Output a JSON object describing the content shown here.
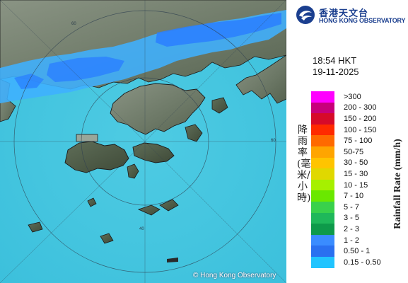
{
  "map": {
    "copyright": "© Hong Kong Observatory",
    "range_ring_labels": [
      "40",
      "60"
    ],
    "colors": {
      "sea": "#45c7e0",
      "land": "#6e7a6a",
      "rain_light": "#3fb0ff",
      "rain_moderate": "#2a7fff",
      "coast": "#1a1a1a"
    }
  },
  "header": {
    "logo_name_zh": "香港天文台",
    "logo_name_en": "HONG KONG OBSERVATORY",
    "time": "18:54 HKT",
    "date": "19-11-2025"
  },
  "legend": {
    "title_zh": "降雨率(毫米/小時)",
    "title_en": "Rainfall Rate (mm/h)",
    "items": [
      {
        "label": ">300",
        "color": "#ff00ff"
      },
      {
        "label": "200 - 300",
        "color": "#c8007a"
      },
      {
        "label": "150 - 200",
        "color": "#d60a2a"
      },
      {
        "label": "100 - 150",
        "color": "#ff2a00"
      },
      {
        "label": "75 - 100",
        "color": "#ff6a00"
      },
      {
        "label": "50-75",
        "color": "#ffa500"
      },
      {
        "label": "30 - 50",
        "color": "#ffc400"
      },
      {
        "label": "15 - 30",
        "color": "#e0d800"
      },
      {
        "label": "10 - 15",
        "color": "#a6f000"
      },
      {
        "label": "7 - 10",
        "color": "#6ae800"
      },
      {
        "label": "5 - 7",
        "color": "#39d14b"
      },
      {
        "label": "3 - 5",
        "color": "#1fb85a"
      },
      {
        "label": "2 - 3",
        "color": "#0e9a4a"
      },
      {
        "label": "1 - 2",
        "color": "#3a8cff"
      },
      {
        "label": "0.50 - 1",
        "color": "#2a70f0"
      },
      {
        "label": "0.15 - 0.50",
        "color": "#21c4ff"
      }
    ]
  }
}
